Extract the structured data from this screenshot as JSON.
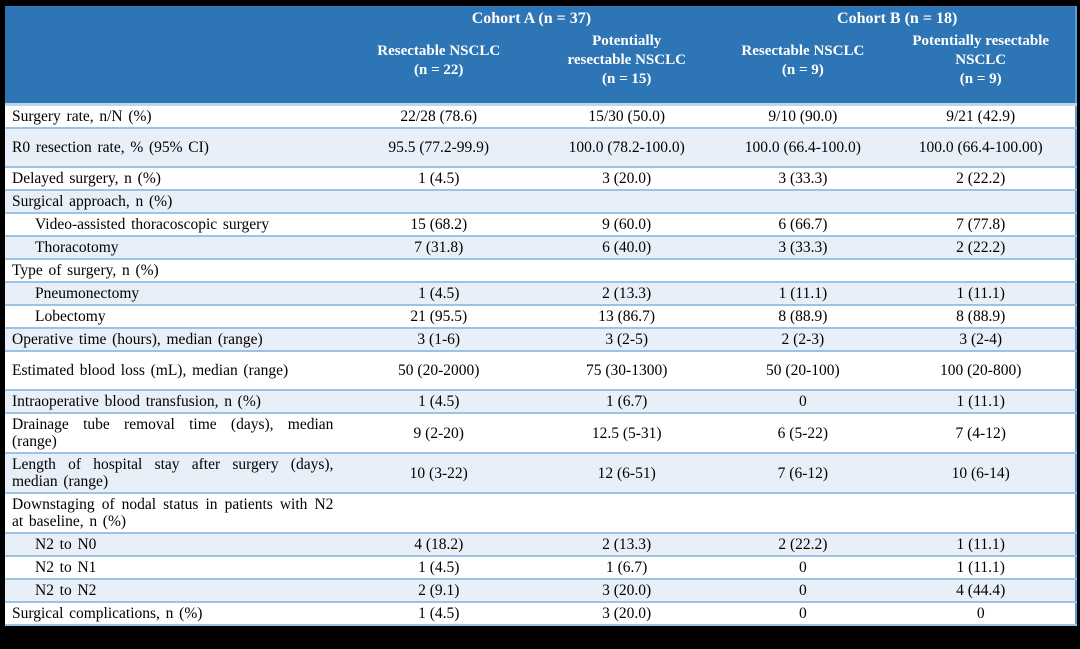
{
  "colors": {
    "header_bg": "#2E75B6",
    "header_text": "#FFFFFF",
    "shaded_row_bg": "#E9EFF8",
    "row_border": "#9CC2E5",
    "table_right_border": "#5B9BD5",
    "frame_bg": "#000000",
    "body_text": "#000000"
  },
  "table": {
    "cohort_headers": [
      {
        "label": "Cohort A (n = 37)"
      },
      {
        "label": "Cohort B (n = 18)"
      }
    ],
    "column_headers": [
      "Resectable NSCLC\n(n = 22)",
      "Potentially\nresectable NSCLC\n(n = 15)",
      "Resectable NSCLC\n(n = 9)",
      "Potentially resectable\nNSCLC\n(n = 9)"
    ],
    "rows": [
      {
        "label": "Surgery rate, n/N (%)",
        "values": [
          "22/28 (78.6)",
          "15/30 (50.0)",
          "9/10 (90.0)",
          "9/21 (42.9)"
        ],
        "indent": false,
        "shaded": false,
        "tall": false
      },
      {
        "label": "R0 resection rate, % (95% CI)",
        "values": [
          "95.5 (77.2-99.9)",
          "100.0 (78.2-100.0)",
          "100.0 (66.4-100.0)",
          "100.0 (66.4-100.00)"
        ],
        "indent": false,
        "shaded": true,
        "tall": true
      },
      {
        "label": "Delayed surgery, n (%)",
        "values": [
          "1 (4.5)",
          "3 (20.0)",
          "3 (33.3)",
          "2 (22.2)"
        ],
        "indent": false,
        "shaded": false,
        "tall": false
      },
      {
        "label": "Surgical approach, n (%)",
        "values": [
          "",
          "",
          "",
          ""
        ],
        "indent": false,
        "shaded": true,
        "tall": false
      },
      {
        "label": "Video-assisted thoracoscopic surgery",
        "values": [
          "15 (68.2)",
          "9 (60.0)",
          "6 (66.7)",
          "7 (77.8)"
        ],
        "indent": true,
        "shaded": false,
        "tall": false
      },
      {
        "label": "Thoracotomy",
        "values": [
          "7 (31.8)",
          "6 (40.0)",
          "3 (33.3)",
          "2 (22.2)"
        ],
        "indent": true,
        "shaded": true,
        "tall": false
      },
      {
        "label": "Type of surgery, n (%)",
        "values": [
          "",
          "",
          "",
          ""
        ],
        "indent": false,
        "shaded": false,
        "tall": false
      },
      {
        "label": "Pneumonectomy",
        "values": [
          "1 (4.5)",
          "2 (13.3)",
          "1 (11.1)",
          "1 (11.1)"
        ],
        "indent": true,
        "shaded": true,
        "tall": false
      },
      {
        "label": "Lobectomy",
        "values": [
          "21 (95.5)",
          "13 (86.7)",
          "8 (88.9)",
          "8 (88.9)"
        ],
        "indent": true,
        "shaded": false,
        "tall": false
      },
      {
        "label": "Operative time (hours), median (range)",
        "values": [
          "3 (1-6)",
          "3 (2-5)",
          "2 (2-3)",
          "3 (2-4)"
        ],
        "indent": false,
        "shaded": true,
        "tall": false
      },
      {
        "label": "Estimated blood loss (mL), median (range)",
        "values": [
          "50 (20-2000)",
          "75 (30-1300)",
          "50 (20-100)",
          "100 (20-800)"
        ],
        "indent": false,
        "shaded": false,
        "tall": true
      },
      {
        "label": "Intraoperative blood transfusion, n (%)",
        "values": [
          "1 (4.5)",
          "1 (6.7)",
          "0",
          "1 (11.1)"
        ],
        "indent": false,
        "shaded": true,
        "tall": false
      },
      {
        "label": "Drainage tube removal time (days), median (range)",
        "values": [
          "9 (2-20)",
          "12.5 (5-31)",
          "6 (5-22)",
          "7 (4-12)"
        ],
        "indent": false,
        "shaded": false,
        "tall": false
      },
      {
        "label": "Length of hospital stay after surgery (days), median (range)",
        "values": [
          "10 (3-22)",
          "12 (6-51)",
          "7 (6-12)",
          "10 (6-14)"
        ],
        "indent": false,
        "shaded": true,
        "tall": false
      },
      {
        "label": "Downstaging of nodal status in patients with N2 at baseline, n (%)",
        "values": [
          "",
          "",
          "",
          ""
        ],
        "indent": false,
        "shaded": false,
        "tall": false
      },
      {
        "label": "N2 to N0",
        "values": [
          "4 (18.2)",
          "2 (13.3)",
          "2 (22.2)",
          "1 (11.1)"
        ],
        "indent": true,
        "shaded": true,
        "tall": false
      },
      {
        "label": "N2 to N1",
        "values": [
          "1 (4.5)",
          "1 (6.7)",
          "0",
          "1 (11.1)"
        ],
        "indent": true,
        "shaded": false,
        "tall": false
      },
      {
        "label": "N2 to N2",
        "values": [
          "2 (9.1)",
          "3 (20.0)",
          "0",
          "4 (44.4)"
        ],
        "indent": true,
        "shaded": true,
        "tall": false
      },
      {
        "label": "Surgical complications, n (%)",
        "values": [
          "1 (4.5)",
          "3 (20.0)",
          "0",
          "0"
        ],
        "indent": false,
        "shaded": false,
        "tall": false
      }
    ]
  }
}
